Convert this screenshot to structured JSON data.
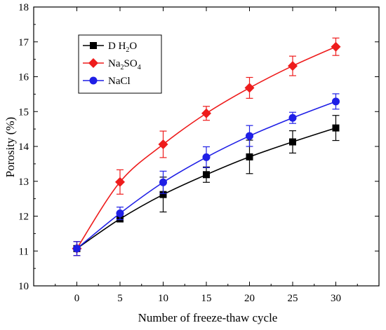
{
  "chart_data": {
    "type": "line",
    "xlabel": "Number of freeze-thaw cycle",
    "ylabel": "Porosity (%)",
    "xlim": [
      -5,
      35
    ],
    "ylim": [
      10,
      18
    ],
    "x_ticks": [
      0,
      5,
      10,
      15,
      20,
      25,
      30
    ],
    "y_ticks": [
      10,
      11,
      12,
      13,
      14,
      15,
      16,
      17,
      18
    ],
    "grid": false,
    "legend_position": "top-left",
    "x": [
      0,
      5,
      10,
      15,
      20,
      25,
      30
    ],
    "series": [
      {
        "name": "D H2O",
        "name_main": "D H",
        "name_sub": "2",
        "name_tail": "O",
        "color": "#000000",
        "marker": "square",
        "values": [
          11.07,
          11.92,
          12.62,
          13.19,
          13.7,
          14.13,
          14.53
        ],
        "errors": [
          0.2,
          0.08,
          0.5,
          0.22,
          0.48,
          0.32,
          0.36
        ]
      },
      {
        "name": "Na2SO4",
        "name_main": "Na",
        "name_sub": "2",
        "name_tail": "SO",
        "name_sub2": "4",
        "color": "#ee1c1c",
        "marker": "diamond",
        "values": [
          11.07,
          12.98,
          14.06,
          14.95,
          15.68,
          16.31,
          16.86
        ],
        "errors": [
          0.2,
          0.35,
          0.38,
          0.2,
          0.3,
          0.28,
          0.25
        ]
      },
      {
        "name": "NaCl",
        "color": "#1f1fe6",
        "marker": "circle",
        "values": [
          11.07,
          12.08,
          12.97,
          13.69,
          14.3,
          14.82,
          15.29
        ],
        "errors": [
          0.2,
          0.18,
          0.32,
          0.3,
          0.3,
          0.16,
          0.22
        ]
      }
    ]
  }
}
